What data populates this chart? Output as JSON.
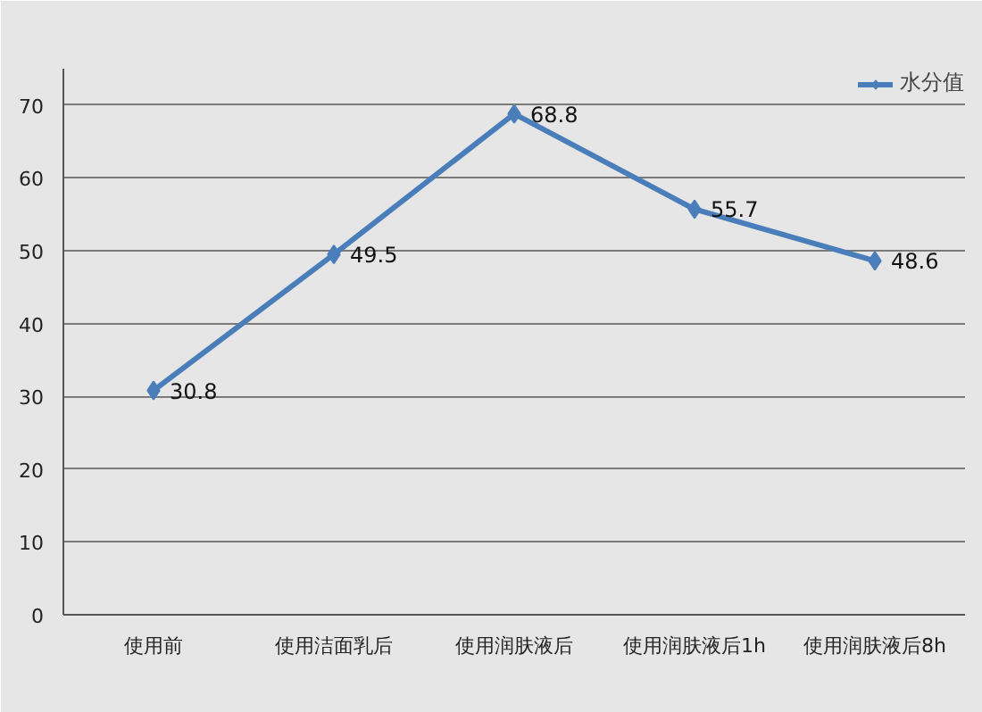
{
  "chart_data": {
    "type": "line",
    "categories": [
      "使用前",
      "使用洁面乳后",
      "使用润肤液后",
      "使用润肤液后1h",
      "使用润肤液后8h"
    ],
    "series": [
      {
        "name": "水分值",
        "color": "#4a7ebb",
        "values": [
          30.8,
          49.5,
          68.8,
          55.7,
          48.6
        ]
      }
    ],
    "ylim": [
      0,
      75
    ],
    "yticks": [
      0,
      10,
      20,
      30,
      40,
      50,
      60,
      70
    ],
    "grid": "y",
    "legend": "top right",
    "marker": "diamond",
    "line_style": "solid",
    "data_labels": true
  }
}
